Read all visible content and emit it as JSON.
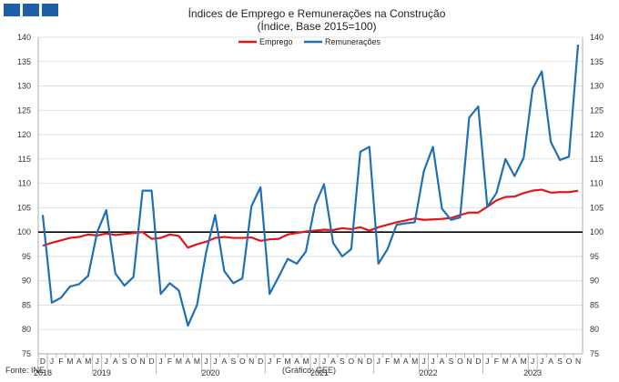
{
  "chart_data": {
    "type": "line",
    "title": "Índices de Emprego e Remunerações na Construção",
    "subtitle": "(Índice, Base 2015=100)",
    "xlabel": "",
    "ylabel": "",
    "ylim": [
      75,
      140
    ],
    "yticks": [
      "75",
      "80",
      "85",
      "90",
      "95",
      "100",
      "105",
      "110",
      "115",
      "120",
      "125",
      "130",
      "135",
      "140"
    ],
    "legend_position": "top-center",
    "grid": true,
    "reference_line": 100,
    "x": [
      "2018-12",
      "2019-01",
      "2019-02",
      "2019-03",
      "2019-04",
      "2019-05",
      "2019-06",
      "2019-07",
      "2019-08",
      "2019-09",
      "2019-10",
      "2019-11",
      "2019-12",
      "2020-01",
      "2020-02",
      "2020-03",
      "2020-04",
      "2020-05",
      "2020-06",
      "2020-07",
      "2020-08",
      "2020-09",
      "2020-10",
      "2020-11",
      "2020-12",
      "2021-01",
      "2021-02",
      "2021-03",
      "2021-04",
      "2021-05",
      "2021-06",
      "2021-07",
      "2021-08",
      "2021-09",
      "2021-10",
      "2021-11",
      "2021-12",
      "2022-01",
      "2022-02",
      "2022-03",
      "2022-04",
      "2022-05",
      "2022-06",
      "2022-07",
      "2022-08",
      "2022-09",
      "2022-10",
      "2022-11",
      "2022-12",
      "2023-01",
      "2023-02",
      "2023-03",
      "2023-04",
      "2023-05",
      "2023-06",
      "2023-07",
      "2023-08",
      "2023-09",
      "2023-10",
      "2023-11"
    ],
    "month_labels": [
      "D",
      "J",
      "F",
      "M",
      "A",
      "M",
      "J",
      "J",
      "A",
      "S",
      "O",
      "N",
      "D",
      "J",
      "F",
      "M",
      "A",
      "M",
      "J",
      "J",
      "A",
      "S",
      "O",
      "N",
      "D",
      "J",
      "F",
      "M",
      "A",
      "M",
      "J",
      "J",
      "A",
      "S",
      "O",
      "N",
      "D",
      "J",
      "F",
      "M",
      "A",
      "M",
      "J",
      "J",
      "A",
      "S",
      "O",
      "N",
      "D",
      "J",
      "F",
      "M",
      "A",
      "M",
      "J",
      "J",
      "A",
      "S",
      "O",
      "N"
    ],
    "year_labels": [
      {
        "label": "2018",
        "index": 0
      },
      {
        "label": "2019",
        "index": 6.5
      },
      {
        "label": "2020",
        "index": 18.5
      },
      {
        "label": "2021",
        "index": 30.5
      },
      {
        "label": "2022",
        "index": 42.5
      },
      {
        "label": "2023",
        "index": 54
      }
    ],
    "series": [
      {
        "name": "Emprego",
        "color": "#e3151a",
        "values": [
          97.2,
          97.8,
          98.3,
          98.8,
          99.0,
          99.5,
          99.3,
          99.7,
          99.4,
          99.6,
          99.8,
          100.0,
          98.6,
          98.8,
          99.5,
          99.2,
          96.8,
          97.5,
          98.0,
          98.8,
          99.0,
          98.8,
          98.8,
          98.9,
          98.2,
          98.5,
          98.6,
          99.5,
          99.8,
          100.1,
          100.3,
          100.5,
          100.4,
          100.8,
          100.6,
          101.0,
          100.3,
          101.0,
          101.5,
          102.0,
          102.4,
          102.8,
          102.5,
          102.6,
          102.7,
          102.9,
          103.5,
          104.0,
          104.0,
          105.2,
          106.5,
          107.2,
          107.3,
          108.0,
          108.5,
          108.7,
          108.1,
          108.2,
          108.2,
          108.5
        ]
      },
      {
        "name": "Remunerações",
        "color": "#1f6fb5",
        "values": [
          103.5,
          85.5,
          86.5,
          88.8,
          89.3,
          91.0,
          100.0,
          104.5,
          91.5,
          89.0,
          90.8,
          108.5,
          108.5,
          87.3,
          89.5,
          88.0,
          80.8,
          85.0,
          95.8,
          103.5,
          92.0,
          89.5,
          90.5,
          105.3,
          109.2,
          87.3,
          90.8,
          94.5,
          93.5,
          96.0,
          105.5,
          109.8,
          97.8,
          95.0,
          96.5,
          116.5,
          117.5,
          93.5,
          96.5,
          101.5,
          101.8,
          102.0,
          112.5,
          117.5,
          104.8,
          102.5,
          103.0,
          123.5,
          125.8,
          105.2,
          108.0,
          115.0,
          111.5,
          115.2,
          129.5,
          133.0,
          118.5,
          114.8,
          115.5,
          138.5
        ]
      }
    ]
  },
  "footer": {
    "source": "Fonte: INE",
    "credit": "(Gráfico: GEE)"
  },
  "colors": {
    "logo": "#1f5fa8",
    "grid": "#d9d9d9",
    "reference_line": "#000000"
  }
}
